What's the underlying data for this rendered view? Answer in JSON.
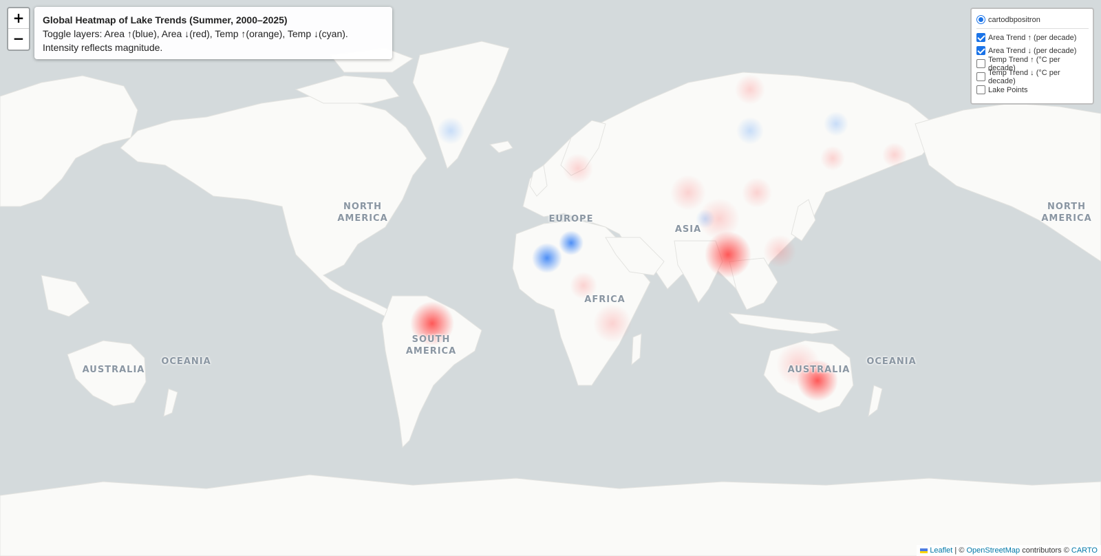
{
  "map": {
    "ocean_color": "#d4dadc",
    "land_color": "#fafaf8",
    "labels": {
      "north_america_left": "NORTH\nAMERICA",
      "europe": "EUROPE",
      "asia": "ASIA",
      "africa": "AFRICA",
      "south_america": "SOUTH\nAMERICA",
      "australia_left": "AUSTRALIA",
      "oceania_left": "OCEANIA",
      "australia_right": "AUSTRALIA",
      "oceania_right": "OCEANIA",
      "north_america_right": "NORTH\nAMERICA"
    }
  },
  "heat_colors": {
    "area_up": "#2f7cf6",
    "area_down": "#ff3b3b"
  },
  "zoom": {
    "in_label": "+",
    "out_label": "−"
  },
  "info": {
    "title": "Global Heatmap of Lake Trends (Summer, 2000–2025)",
    "line1": "Toggle layers: Area ↑(blue), Area ↓(red), Temp ↑(orange), Temp ↓(cyan).",
    "line2": "Intensity reflects magnitude."
  },
  "layers": {
    "base": {
      "label": "cartodbpositron",
      "selected": true
    },
    "overlays": [
      {
        "label": "Area Trend ↑ (per decade)",
        "checked": true
      },
      {
        "label": "Area Trend ↓ (per decade)",
        "checked": true
      },
      {
        "label": "Temp Trend ↑ (°C per decade)",
        "checked": false
      },
      {
        "label": "Temp Trend ↓ (°C per decade)",
        "checked": false
      },
      {
        "label": "Lake Points",
        "checked": false
      }
    ]
  },
  "attribution": {
    "leaflet": "Leaflet",
    "sep": " | © ",
    "osm": "OpenStreetMap",
    "contrib": " contributors © ",
    "carto": "CARTO"
  }
}
